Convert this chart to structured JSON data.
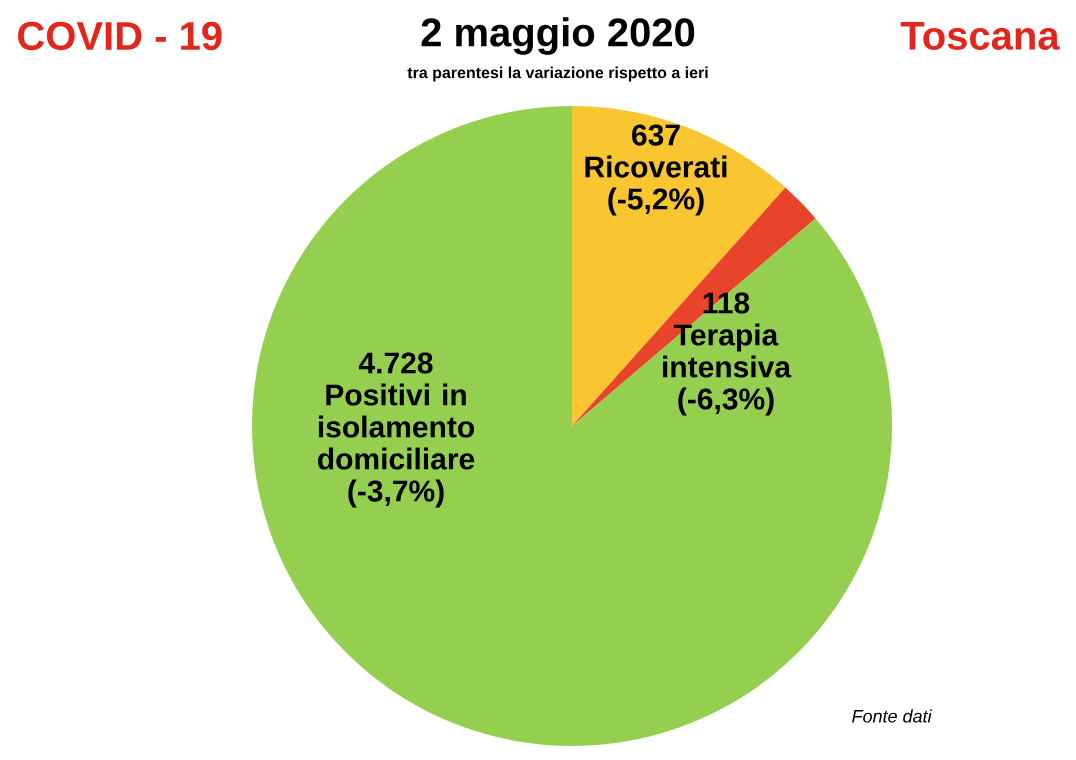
{
  "chart_data": {
    "type": "pie",
    "title": "2 maggio 2020",
    "subtitle": "tra parentesi la variazione rispetto a ieri",
    "categories": [
      "Ricoverati",
      "Terapia intensiva",
      "Positivi in isolamento domiciliare"
    ],
    "values": [
      637,
      118,
      4728
    ],
    "value_labels": [
      "637",
      "118",
      "4.728"
    ],
    "colors": [
      "#f9c531",
      "#e8432b",
      "#94cf4f"
    ],
    "annotations": [
      {
        "text": "(-5,2%)",
        "x": "Ricoverati"
      },
      {
        "text": "(-6,3%)",
        "x": "Terapia intensiva"
      },
      {
        "text": "(-3,7%)",
        "x": "Positivi in isolamento domiciliare"
      },
      "COVID - 19",
      "Toscana",
      "Fonte dati"
    ]
  }
}
